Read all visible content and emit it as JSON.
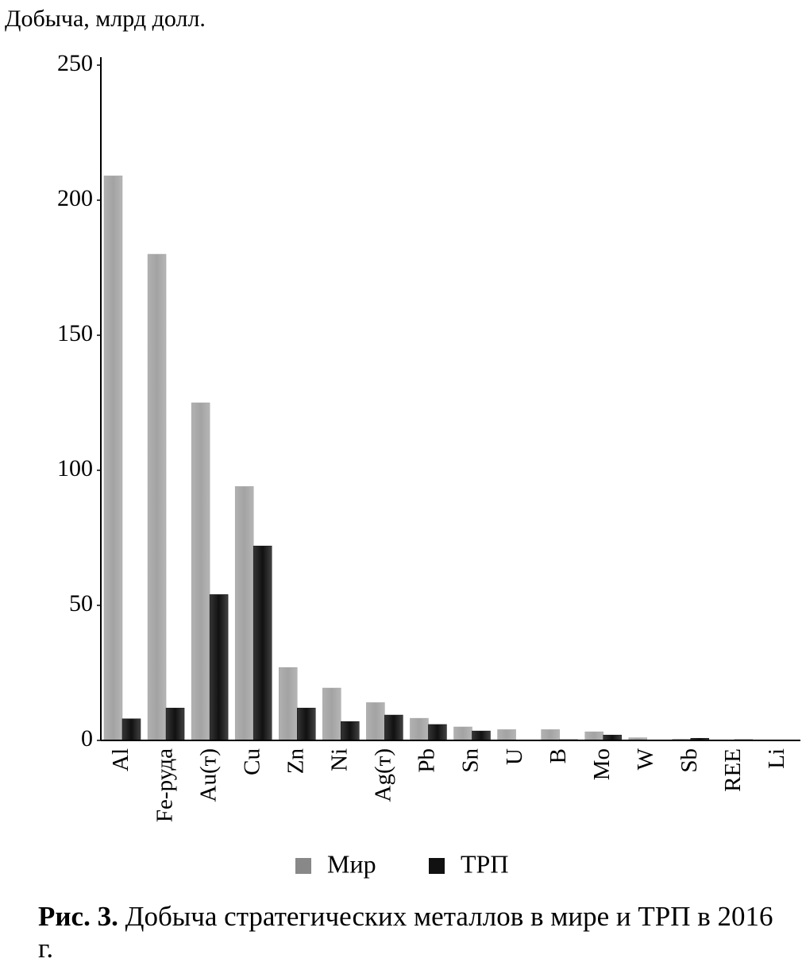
{
  "chart_data": {
    "type": "bar",
    "y_axis_label": "Добыча, млрд долл.",
    "figure_label": "Рис. 3.",
    "caption": "Добыча стратегических металлов в мире и ТРП в 2016 г.",
    "categories": [
      "Al",
      "Fe-руда",
      "Au(т)",
      "Cu",
      "Zn",
      "Ni",
      "Ag(т)",
      "Pb",
      "Sn",
      "U",
      "B",
      "Mo",
      "W",
      "Sb",
      "REE",
      "Li"
    ],
    "series": [
      {
        "name": "Мир",
        "color": "#a3a3a3",
        "values": [
          209,
          180,
          125,
          94,
          27,
          19.4,
          14,
          8.2,
          5,
          4,
          4,
          3.2,
          1,
          0.5,
          0.2,
          0.2
        ]
      },
      {
        "name": "ТРП",
        "color": "#111111",
        "values": [
          8,
          12,
          54,
          72,
          12,
          7,
          9.4,
          5.9,
          3.5,
          0,
          0.3,
          2,
          0,
          0.8,
          0.3,
          0
        ]
      }
    ],
    "ylim": [
      0,
      250
    ],
    "yticks": [
      0,
      50,
      100,
      150,
      200,
      250
    ]
  }
}
